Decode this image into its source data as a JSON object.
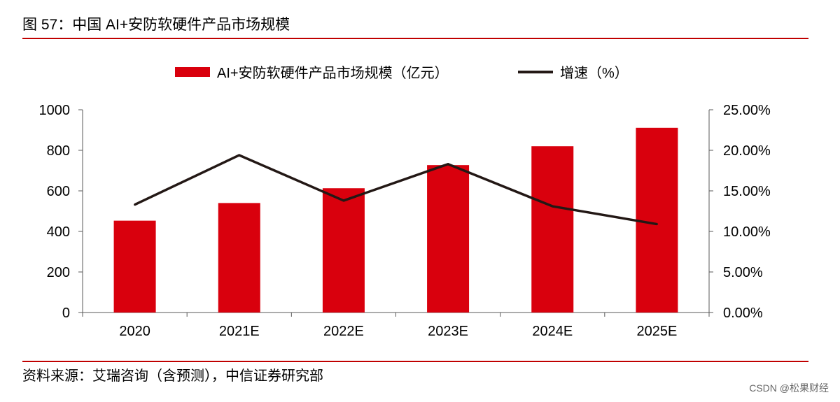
{
  "figure_title": "图 57：中国 AI+安防软硬件产品市场规模",
  "source_note": "资料来源：艾瑞咨询（含预测），中信证券研究部",
  "watermark": "CSDN @松果财经",
  "colors": {
    "bar": "#d9000d",
    "line": "#231815",
    "rule": "#c00000"
  },
  "chart_data": {
    "type": "bar+line",
    "categories": [
      "2020",
      "2021E",
      "2022E",
      "2023E",
      "2024E",
      "2025E"
    ],
    "series": [
      {
        "name": "AI+安防软硬件产品市场规模（亿元）",
        "type": "bar",
        "axis": "left",
        "values": [
          453,
          540,
          613,
          727,
          820,
          911
        ]
      },
      {
        "name": "增速（%）",
        "type": "line",
        "axis": "right",
        "values": [
          13.3,
          19.4,
          13.8,
          18.3,
          13.1,
          10.9
        ]
      }
    ],
    "y_left": {
      "min": 0,
      "max": 1000,
      "ticks": [
        "0",
        "200",
        "400",
        "600",
        "800",
        "1000"
      ]
    },
    "y_right": {
      "min": 0,
      "max": 25,
      "ticks": [
        "0.00%",
        "5.00%",
        "10.00%",
        "15.00%",
        "20.00%",
        "25.00%"
      ]
    },
    "legend_position": "top-center",
    "grid": false
  }
}
